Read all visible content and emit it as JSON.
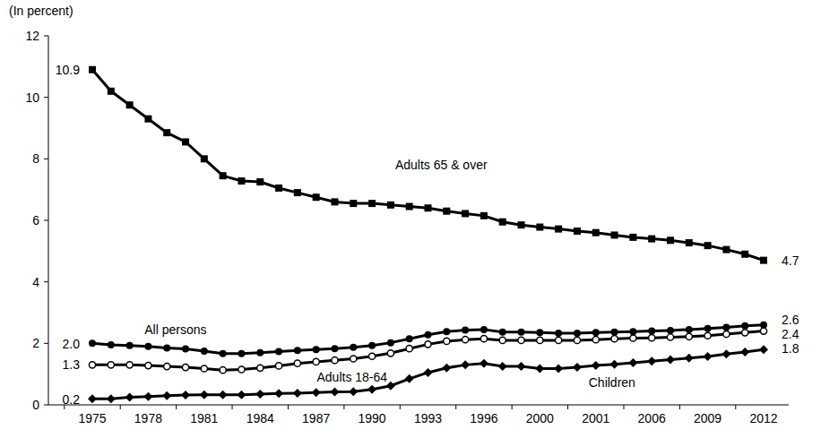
{
  "chart_data": {
    "type": "line",
    "y_label": "(In percent)",
    "categories": [
      "1975",
      null,
      null,
      "1978",
      null,
      null,
      "1981",
      null,
      null,
      "1984",
      null,
      null,
      "1987",
      null,
      null,
      "1990",
      null,
      null,
      "1993",
      null,
      null,
      "1996",
      null,
      null,
      "2000",
      null,
      null,
      "2001",
      null,
      null,
      "2006",
      null,
      null,
      "2009",
      null,
      null,
      "2012"
    ],
    "ylim": [
      0,
      12
    ],
    "yticks": [
      0,
      2,
      4,
      6,
      8,
      10,
      12
    ],
    "grid": false,
    "data_labels": true,
    "series": [
      {
        "name": "Adults 65 & over",
        "color": "#000000",
        "marker": "square",
        "line_style": "solid",
        "values": [
          10.9,
          10.2,
          9.75,
          9.3,
          8.85,
          8.55,
          8.0,
          7.45,
          7.28,
          7.25,
          7.05,
          6.9,
          6.75,
          6.6,
          6.55,
          6.55,
          6.5,
          6.45,
          6.4,
          6.3,
          6.22,
          6.15,
          5.95,
          5.85,
          5.78,
          5.72,
          5.65,
          5.6,
          5.52,
          5.45,
          5.4,
          5.35,
          5.27,
          5.18,
          5.05,
          4.9,
          4.7
        ],
        "value_labels": [
          "10.9",
          null,
          null,
          null,
          null,
          null,
          null,
          null,
          null,
          null,
          null,
          null,
          null,
          null,
          null,
          null,
          null,
          null,
          null,
          null,
          null,
          null,
          null,
          null,
          null,
          null,
          null,
          null,
          null,
          null,
          null,
          null,
          null,
          null,
          null,
          null,
          "4.7"
        ]
      },
      {
        "name": "All persons",
        "color": "#000000",
        "marker": "circle",
        "line_style": "solid",
        "values": [
          2.0,
          1.95,
          1.93,
          1.9,
          1.85,
          1.82,
          1.75,
          1.67,
          1.67,
          1.7,
          1.73,
          1.77,
          1.8,
          1.83,
          1.87,
          1.93,
          2.02,
          2.15,
          2.28,
          2.38,
          2.43,
          2.45,
          2.37,
          2.37,
          2.35,
          2.33,
          2.33,
          2.35,
          2.37,
          2.38,
          2.4,
          2.42,
          2.45,
          2.48,
          2.52,
          2.57,
          2.6
        ],
        "value_labels": [
          "2.0",
          null,
          null,
          null,
          null,
          null,
          null,
          null,
          null,
          null,
          null,
          null,
          null,
          null,
          null,
          null,
          null,
          null,
          null,
          null,
          null,
          null,
          null,
          null,
          null,
          null,
          null,
          null,
          null,
          null,
          null,
          null,
          null,
          null,
          null,
          null,
          "2.6"
        ]
      },
      {
        "name": "Adults 18-64",
        "color": "#000000",
        "marker": "open-circle",
        "line_style": "solid",
        "values": [
          1.3,
          1.3,
          1.3,
          1.28,
          1.25,
          1.22,
          1.18,
          1.13,
          1.15,
          1.2,
          1.27,
          1.35,
          1.4,
          1.45,
          1.5,
          1.58,
          1.68,
          1.83,
          1.97,
          2.07,
          2.12,
          2.15,
          2.1,
          2.1,
          2.1,
          2.1,
          2.1,
          2.12,
          2.15,
          2.17,
          2.18,
          2.2,
          2.22,
          2.25,
          2.3,
          2.35,
          2.4
        ],
        "value_labels": [
          "1.3",
          null,
          null,
          null,
          null,
          null,
          null,
          null,
          null,
          null,
          null,
          null,
          null,
          null,
          null,
          null,
          null,
          null,
          null,
          null,
          null,
          null,
          null,
          null,
          null,
          null,
          null,
          null,
          null,
          null,
          null,
          null,
          null,
          null,
          null,
          null,
          "2.4"
        ]
      },
      {
        "name": "Children",
        "color": "#000000",
        "marker": "diamond",
        "line_style": "solid",
        "values": [
          0.2,
          0.2,
          0.25,
          0.27,
          0.3,
          0.32,
          0.33,
          0.33,
          0.33,
          0.35,
          0.37,
          0.38,
          0.4,
          0.42,
          0.43,
          0.5,
          0.62,
          0.85,
          1.05,
          1.2,
          1.3,
          1.35,
          1.25,
          1.25,
          1.18,
          1.18,
          1.22,
          1.28,
          1.32,
          1.37,
          1.42,
          1.47,
          1.52,
          1.57,
          1.65,
          1.72,
          1.8
        ],
        "value_labels": [
          "0.2",
          null,
          null,
          null,
          null,
          null,
          null,
          null,
          null,
          null,
          null,
          null,
          null,
          null,
          null,
          null,
          null,
          null,
          null,
          null,
          null,
          null,
          null,
          null,
          null,
          null,
          null,
          null,
          null,
          null,
          null,
          null,
          null,
          null,
          null,
          null,
          "1.8"
        ]
      }
    ]
  }
}
